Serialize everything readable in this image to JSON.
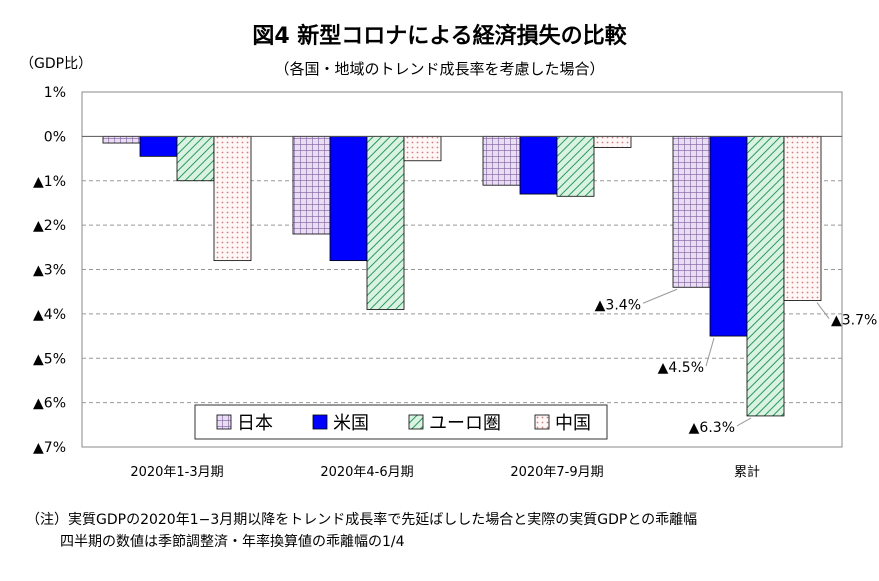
{
  "chart_data": {
    "type": "bar",
    "title": "図4 新型コロナによる経済損失の比較",
    "subtitle": "（各国・地域のトレンド成長率を考慮した場合）",
    "ylabel": "（GDP比）",
    "ylim": [
      -7,
      1
    ],
    "yticks": [
      {
        "value": 1,
        "label": "1%"
      },
      {
        "value": 0,
        "label": "0%"
      },
      {
        "value": -1,
        "label": "▲1%"
      },
      {
        "value": -2,
        "label": "▲2%"
      },
      {
        "value": -3,
        "label": "▲3%"
      },
      {
        "value": -4,
        "label": "▲4%"
      },
      {
        "value": -5,
        "label": "▲5%"
      },
      {
        "value": -6,
        "label": "▲6%"
      },
      {
        "value": -7,
        "label": "▲7%"
      }
    ],
    "categories": [
      "2020年1-3月期",
      "2020年4-6月期",
      "2020年7-9月期",
      "累計"
    ],
    "series": [
      {
        "name": "日本",
        "color": "#8060a0",
        "pattern": "grid",
        "values": [
          -0.15,
          -2.2,
          -1.1,
          -3.4
        ]
      },
      {
        "name": "米国",
        "color": "#0000ff",
        "pattern": "solid",
        "values": [
          -0.45,
          -2.8,
          -1.3,
          -4.5
        ]
      },
      {
        "name": "ユーロ圏",
        "color": "#2a9a5a",
        "pattern": "diagonal",
        "values": [
          -1.0,
          -3.9,
          -1.35,
          -6.3
        ]
      },
      {
        "name": "中国",
        "color": "#d08080",
        "pattern": "dots",
        "values": [
          -2.8,
          -0.55,
          -0.25,
          -3.7
        ]
      }
    ],
    "annotations": [
      {
        "text": "▲3.4%",
        "category": 3,
        "series": 0
      },
      {
        "text": "▲4.5%",
        "category": 3,
        "series": 1
      },
      {
        "text": "▲6.3%",
        "category": 3,
        "series": 2
      },
      {
        "text": "▲3.7%",
        "category": 3,
        "series": 3
      }
    ],
    "grid": true,
    "legend_position": "bottom-center"
  },
  "notes": {
    "line1": "（注）実質GDPの2020年1−3月期以降をトレンド成長率で先延ばしした場合と実際の実質GDPとの乖離幅",
    "line2": "四半期の数値は季節調整済・年率換算値の乖離幅の1/4"
  }
}
